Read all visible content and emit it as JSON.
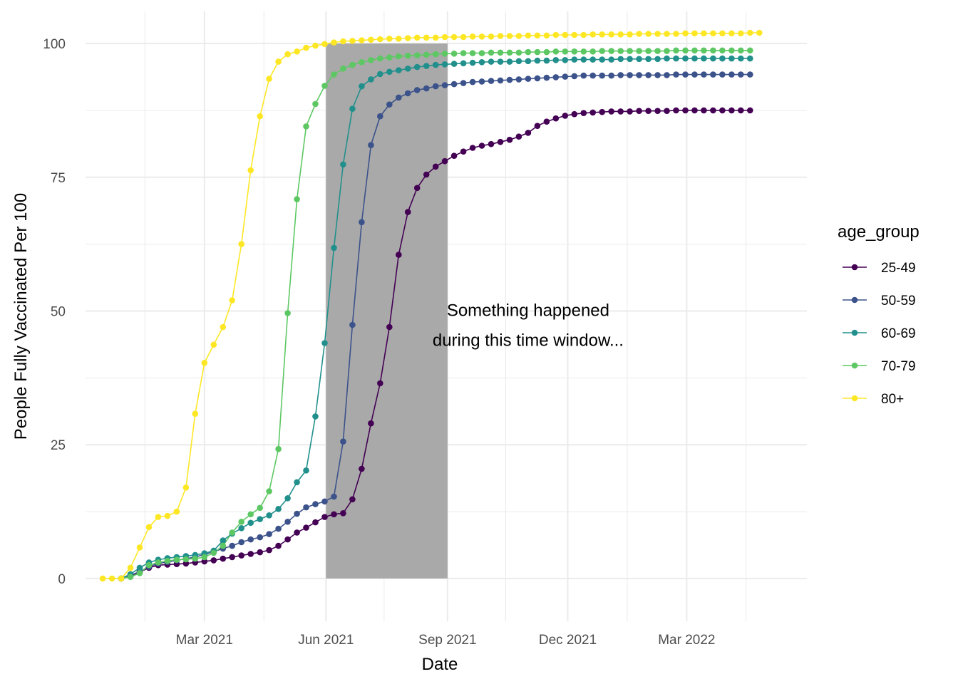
{
  "chart_data": {
    "type": "line",
    "xlabel": "Date",
    "ylabel": "People Fully Vaccinated Per 100",
    "xlim": [
      "2020-12-01",
      "2022-05-31"
    ],
    "ylim": [
      -8,
      106
    ],
    "x_ticks": [
      {
        "date": "2021-03-01",
        "label": "Mar 2021"
      },
      {
        "date": "2021-06-01",
        "label": "Jun 2021"
      },
      {
        "date": "2021-09-01",
        "label": "Sep 2021"
      },
      {
        "date": "2021-12-01",
        "label": "Dec 2021"
      },
      {
        "date": "2022-03-01",
        "label": "Mar 2022"
      }
    ],
    "x_minor_ticks": [
      "2021-01-15",
      "2021-04-15",
      "2021-07-15",
      "2021-10-15",
      "2022-01-15",
      "2022-04-15"
    ],
    "y_ticks": [
      0,
      25,
      50,
      75,
      100
    ],
    "y_minor_ticks": [
      12.5,
      37.5,
      62.5,
      87.5
    ],
    "grid": true,
    "shaded_region": {
      "x_start": "2021-06-01",
      "x_end": "2021-09-01",
      "y_start": 0,
      "y_end": 100,
      "color": "#a9a9a9"
    },
    "annotation": {
      "lines": [
        "Something happened",
        "during this time window..."
      ],
      "x": "2021-11-01",
      "y": 47.5
    },
    "legend": {
      "title": "age_group",
      "position": "right"
    },
    "start_date": "2020-12-14",
    "interval_days": 7,
    "series": [
      {
        "name": "25-49",
        "color": "#440154",
        "start_index": 2,
        "values": [
          0,
          0.5,
          1.2,
          2,
          2.5,
          2.6,
          2.7,
          2.8,
          3,
          3.2,
          3.4,
          3.7,
          4,
          4.3,
          4.6,
          4.9,
          5.3,
          6.1,
          7.3,
          8.6,
          9.5,
          10.5,
          11.5,
          12,
          12.2,
          14.8,
          20.5,
          29,
          36.5,
          47,
          60.5,
          68.5,
          73,
          75.5,
          77,
          78,
          79,
          79.8,
          80.5,
          80.9,
          81.2,
          81.6,
          82,
          82.6,
          83.3,
          84.6,
          85.4,
          86,
          86.5,
          86.8,
          87,
          87.1,
          87.2,
          87.3,
          87.3,
          87.3,
          87.4,
          87.4,
          87.4,
          87.4,
          87.5,
          87.5,
          87.5,
          87.5,
          87.5,
          87.5,
          87.5,
          87.5,
          87.5
        ]
      },
      {
        "name": "50-59",
        "color": "#3b528b",
        "start_index": 2,
        "values": [
          0,
          0.6,
          1.3,
          2.2,
          2.8,
          3.1,
          3.4,
          3.7,
          4,
          4.5,
          5,
          5.6,
          6.1,
          6.8,
          7.3,
          7.7,
          8.3,
          9.3,
          10.6,
          12.1,
          13.3,
          13.9,
          14.4,
          15.3,
          25.6,
          47.4,
          66.6,
          81,
          86.4,
          88.6,
          89.9,
          90.7,
          91.3,
          91.6,
          92,
          92.2,
          92.4,
          92.6,
          92.8,
          92.9,
          93,
          93.1,
          93.2,
          93.3,
          93.4,
          93.5,
          93.6,
          93.7,
          93.8,
          93.9,
          94,
          94,
          94,
          94,
          94.1,
          94.1,
          94.1,
          94.1,
          94.1,
          94.1,
          94.2,
          94.2,
          94.2,
          94.2,
          94.2,
          94.2,
          94.2,
          94.2,
          94.2
        ]
      },
      {
        "name": "60-69",
        "color": "#21908c",
        "start_index": 2,
        "values": [
          0,
          0.8,
          2,
          3,
          3.5,
          3.8,
          4,
          4.2,
          4.4,
          4.7,
          5.2,
          7.1,
          8.4,
          9.4,
          10.4,
          11.1,
          11.8,
          13,
          15,
          18,
          20.2,
          30.3,
          44,
          61.8,
          77.4,
          87.8,
          92,
          93.3,
          94.3,
          94.7,
          95,
          95.3,
          95.6,
          95.8,
          96,
          96.1,
          96.2,
          96.3,
          96.4,
          96.5,
          96.6,
          96.6,
          96.6,
          96.7,
          96.7,
          96.8,
          96.8,
          96.9,
          96.9,
          97,
          97,
          97,
          97,
          97,
          97.1,
          97.1,
          97.1,
          97.1,
          97.1,
          97.2,
          97.2,
          97.2,
          97.2,
          97.2,
          97.2,
          97.2,
          97.2,
          97.2,
          97.2
        ]
      },
      {
        "name": "70-79",
        "color": "#5dc863",
        "start_index": 2,
        "values": [
          0,
          0.3,
          1,
          2.5,
          3,
          3.3,
          3.5,
          3.6,
          3.7,
          4,
          4.8,
          6.1,
          8.6,
          10.6,
          12,
          13.2,
          16.3,
          24.2,
          49.6,
          70.9,
          84.5,
          88.7,
          92.1,
          94.2,
          95.3,
          96,
          96.5,
          96.9,
          97.2,
          97.4,
          97.6,
          97.7,
          97.8,
          97.9,
          98,
          98.1,
          98.1,
          98.2,
          98.2,
          98.2,
          98.3,
          98.3,
          98.3,
          98.3,
          98.4,
          98.4,
          98.4,
          98.5,
          98.5,
          98.5,
          98.5,
          98.5,
          98.6,
          98.6,
          98.6,
          98.6,
          98.6,
          98.6,
          98.6,
          98.6,
          98.7,
          98.7,
          98.7,
          98.7,
          98.7,
          98.7,
          98.7,
          98.7,
          98.7
        ]
      },
      {
        "name": "80+",
        "color": "#fde725",
        "start_index": 0,
        "values": [
          0,
          0,
          0,
          2,
          5.8,
          9.6,
          11.5,
          11.7,
          12.5,
          17,
          30.8,
          40.3,
          43.7,
          47,
          52,
          62.5,
          76.3,
          86.4,
          93.4,
          96.6,
          98,
          98.5,
          99.2,
          99.6,
          99.9,
          100.2,
          100.4,
          100.5,
          100.6,
          100.7,
          100.8,
          100.9,
          100.9,
          101,
          101.1,
          101.1,
          101.1,
          101.2,
          101.2,
          101.2,
          101.3,
          101.3,
          101.3,
          101.4,
          101.4,
          101.4,
          101.5,
          101.5,
          101.5,
          101.6,
          101.6,
          101.6,
          101.6,
          101.7,
          101.7,
          101.7,
          101.7,
          101.7,
          101.8,
          101.8,
          101.8,
          101.8,
          101.8,
          101.9,
          101.9,
          101.9,
          101.9,
          101.9,
          101.9,
          101.9,
          102,
          102
        ]
      }
    ]
  }
}
